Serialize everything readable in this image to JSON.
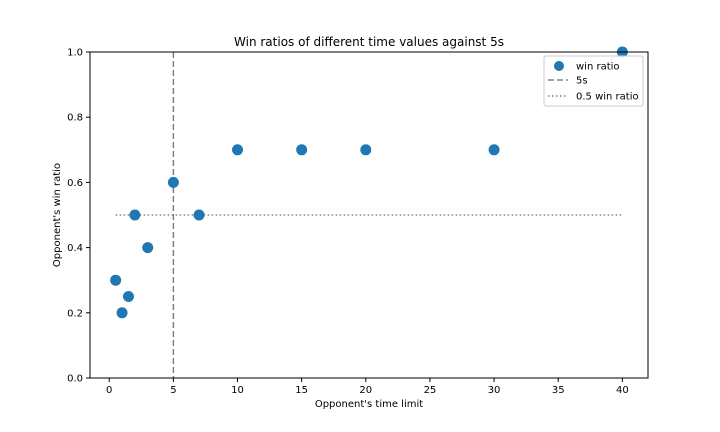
{
  "chart_data": {
    "type": "scatter",
    "title": "Win ratios of different time values against 5s",
    "xlabel": "Opponent's time limit",
    "ylabel": "Opponent's win ratio",
    "xlim": [
      -1.5,
      42.0
    ],
    "ylim": [
      0.0,
      1.0
    ],
    "xticks": [
      0,
      5,
      10,
      15,
      20,
      25,
      30,
      35,
      40
    ],
    "xtick_labels": [
      "0",
      "5",
      "10",
      "15",
      "20",
      "25",
      "30",
      "35",
      "40"
    ],
    "yticks": [
      0.0,
      0.2,
      0.4,
      0.6,
      0.8,
      1.0
    ],
    "ytick_labels": [
      "0.0",
      "0.2",
      "0.4",
      "0.6",
      "0.8",
      "1.0"
    ],
    "grid": false,
    "legend_position": "top-right",
    "series": [
      {
        "name": "win ratio",
        "style": "marker",
        "color": "#1f77b4",
        "points": [
          {
            "x": 0.5,
            "y": 0.3
          },
          {
            "x": 1,
            "y": 0.2
          },
          {
            "x": 1.5,
            "y": 0.25
          },
          {
            "x": 2,
            "y": 0.5
          },
          {
            "x": 3,
            "y": 0.4
          },
          {
            "x": 5,
            "y": 0.6
          },
          {
            "x": 7,
            "y": 0.5
          },
          {
            "x": 10,
            "y": 0.7
          },
          {
            "x": 15,
            "y": 0.7
          },
          {
            "x": 20,
            "y": 0.7
          },
          {
            "x": 30,
            "y": 0.7
          },
          {
            "x": 40,
            "y": 1.0
          }
        ]
      },
      {
        "name": "5s",
        "style": "dashed",
        "color": "#808080",
        "vline_x": 5
      },
      {
        "name": "0.5 win ratio",
        "style": "dotted",
        "color": "#808080",
        "hline_y": 0.5,
        "x_range": [
          0.5,
          40
        ]
      }
    ]
  }
}
